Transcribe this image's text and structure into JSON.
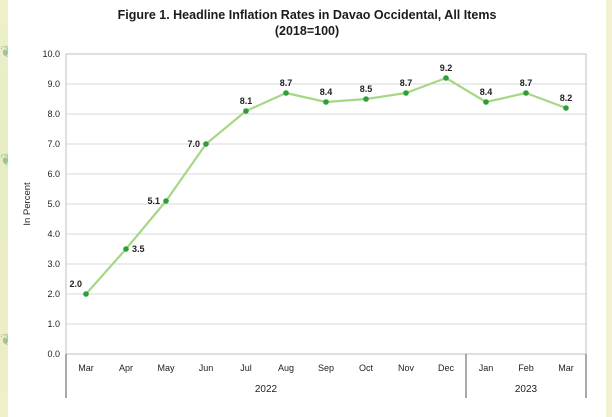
{
  "chart_data": {
    "type": "line",
    "title": "Figure 1. Headline Inflation Rates in Davao Occidental, All Items",
    "subtitle": "(2018=100)",
    "ylabel": "In Percent",
    "xlabel": "",
    "categories": [
      "Mar",
      "Apr",
      "May",
      "Jun",
      "Jul",
      "Aug",
      "Sep",
      "Oct",
      "Nov",
      "Dec",
      "Jan",
      "Feb",
      "Mar"
    ],
    "values": [
      2.0,
      3.5,
      5.1,
      7.0,
      8.1,
      8.7,
      8.4,
      8.5,
      8.7,
      9.2,
      8.4,
      8.7,
      8.2
    ],
    "data_labels": [
      "2.0",
      "3.5",
      "5.1",
      "7.0",
      "8.1",
      "8.7",
      "8.4",
      "8.5",
      "8.7",
      "9.2",
      "8.4",
      "8.7",
      "8.2"
    ],
    "ylim": [
      0,
      10
    ],
    "yticks": [
      "0.0",
      "1.0",
      "2.0",
      "3.0",
      "4.0",
      "5.0",
      "6.0",
      "7.0",
      "8.0",
      "9.0",
      "10.0"
    ],
    "year_groups": [
      {
        "label": "2022",
        "start": 0,
        "end": 9
      },
      {
        "label": "2023",
        "start": 10,
        "end": 12
      }
    ],
    "grid": true,
    "legend": "none",
    "line_color": "#a6d785",
    "marker_color": "#2e9e3a"
  }
}
